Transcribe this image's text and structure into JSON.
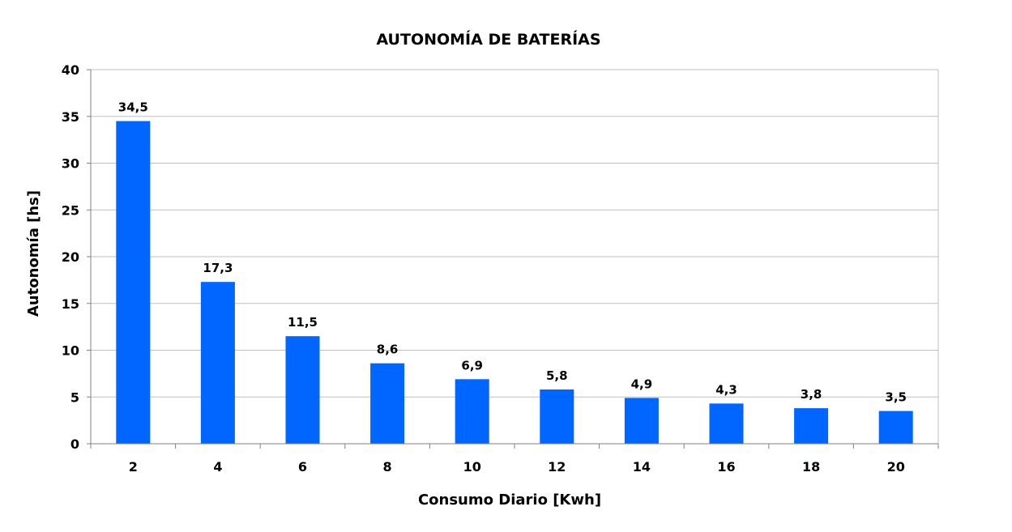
{
  "chart_data": {
    "type": "bar",
    "title": "AUTONOMÍA DE BATERÍAS",
    "xlabel": "Consumo Diario [Kwh]",
    "ylabel": "Autonomía [hs]",
    "categories": [
      "2",
      "4",
      "6",
      "8",
      "10",
      "12",
      "14",
      "16",
      "18",
      "20"
    ],
    "values": [
      34.5,
      17.3,
      11.5,
      8.6,
      6.9,
      5.8,
      4.9,
      4.3,
      3.8,
      3.5
    ],
    "value_labels": [
      "34,5",
      "17,3",
      "11,5",
      "8,6",
      "6,9",
      "5,8",
      "4,9",
      "4,3",
      "3,8",
      "3,5"
    ],
    "ylim": [
      0,
      40
    ],
    "yticks": [
      0,
      5,
      10,
      15,
      20,
      25,
      30,
      35,
      40
    ],
    "grid": true,
    "legend": "none",
    "bar_color": "#0066FF",
    "grid_color": "#BFBFBF",
    "axis_color": "#808080"
  }
}
